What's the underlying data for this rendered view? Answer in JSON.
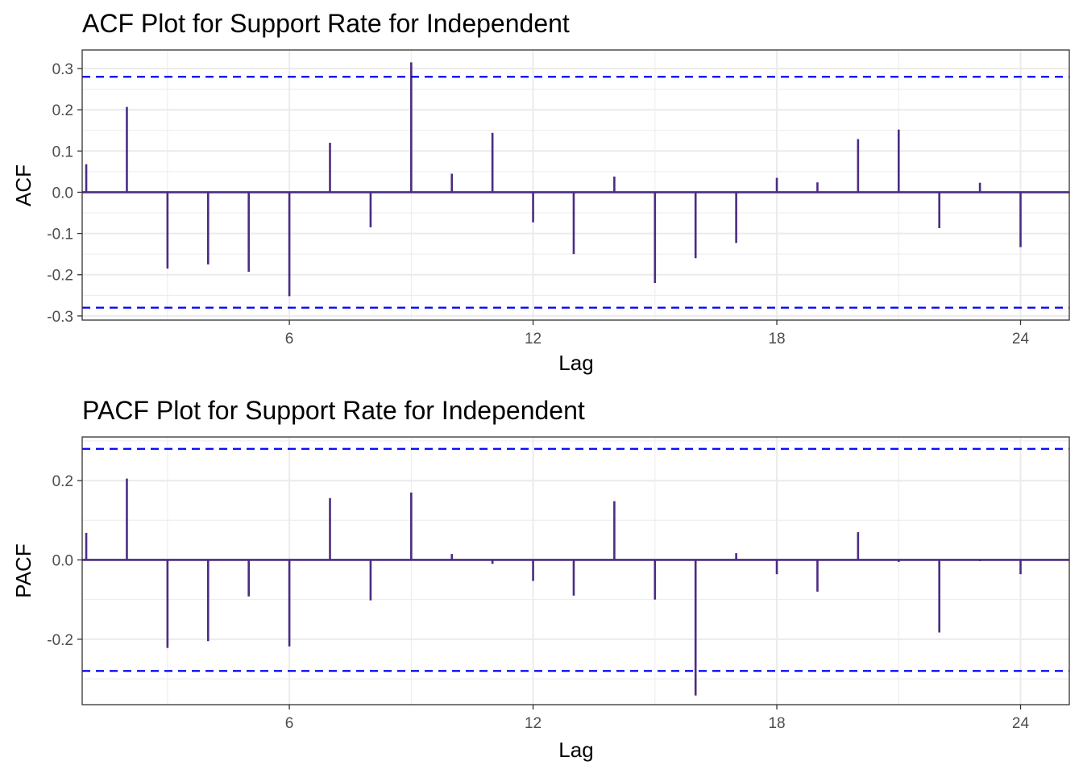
{
  "colors": {
    "bar": "#4B2C83",
    "zero_line": "#4B2C83",
    "ci_line": "#0000FF",
    "grid": "#EBEBEB",
    "panel_border": "#333333"
  },
  "chart_data": [
    {
      "type": "bar",
      "title": "ACF Plot for Support Rate for Independent",
      "xlabel": "Lag",
      "ylabel": "ACF",
      "xlim": [
        0.9,
        25.2
      ],
      "ylim": [
        -0.31,
        0.345
      ],
      "x_ticks": [
        6,
        12,
        18,
        24
      ],
      "x_tick_labels": [
        "6",
        "12",
        "18",
        "24"
      ],
      "y_ticks": [
        -0.3,
        -0.2,
        -0.1,
        0.0,
        0.1,
        0.2,
        0.3
      ],
      "y_tick_labels": [
        "-0.3",
        "-0.2",
        "-0.1",
        "0.0",
        "0.1",
        "0.2",
        "0.3"
      ],
      "confidence_bound": 0.28,
      "grid": true,
      "x": [
        1,
        2,
        3,
        4,
        5,
        6,
        7,
        8,
        9,
        10,
        11,
        12,
        13,
        14,
        15,
        16,
        17,
        18,
        19,
        20,
        21,
        22,
        23,
        24
      ],
      "values": [
        0.068,
        0.207,
        -0.185,
        -0.175,
        -0.193,
        -0.252,
        0.12,
        -0.085,
        0.315,
        0.045,
        0.144,
        -0.073,
        -0.15,
        0.038,
        -0.22,
        -0.16,
        -0.123,
        0.035,
        0.024,
        0.129,
        0.152,
        -0.087,
        0.023,
        -0.133
      ]
    },
    {
      "type": "bar",
      "title": "PACF Plot for Support Rate for Independent",
      "xlabel": "Lag",
      "ylabel": "PACF",
      "xlim": [
        0.9,
        25.2
      ],
      "ylim": [
        -0.365,
        0.31
      ],
      "x_ticks": [
        6,
        12,
        18,
        24
      ],
      "x_tick_labels": [
        "6",
        "12",
        "18",
        "24"
      ],
      "y_ticks": [
        -0.2,
        0.0,
        0.2
      ],
      "y_tick_labels": [
        "-0.2",
        "0.0",
        "0.2"
      ],
      "confidence_bound": 0.28,
      "grid": true,
      "x": [
        1,
        2,
        3,
        4,
        5,
        6,
        7,
        8,
        9,
        10,
        11,
        12,
        13,
        14,
        15,
        16,
        17,
        18,
        19,
        20,
        21,
        22,
        23,
        24
      ],
      "values": [
        0.068,
        0.205,
        -0.222,
        -0.205,
        -0.092,
        -0.218,
        0.156,
        -0.102,
        0.17,
        0.015,
        -0.01,
        -0.053,
        -0.09,
        0.148,
        -0.1,
        -0.342,
        0.017,
        -0.036,
        -0.08,
        0.07,
        -0.005,
        -0.183,
        -0.003,
        -0.036
      ]
    }
  ]
}
